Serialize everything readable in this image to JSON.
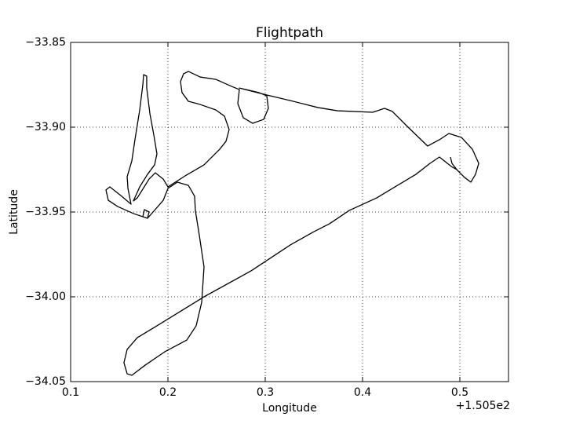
{
  "chart_data": {
    "type": "line",
    "title": "Flightpath",
    "x_label": "Longitude",
    "y_label": "Latitude",
    "x_offset_label": "+1.505e2",
    "color": "#000000",
    "grid": true,
    "xlim": [
      0.1,
      0.55
    ],
    "xticks": [
      0.1,
      0.2,
      0.3,
      0.4,
      0.5
    ],
    "ylim": [
      -34.05,
      -33.85
    ],
    "yticks": [
      {
        "value": -34.05,
        "label": "−34.05"
      },
      {
        "value": -34.0,
        "label": "−34.00"
      },
      {
        "value": -33.95,
        "label": "−33.95"
      },
      {
        "value": -33.9,
        "label": "−33.90"
      },
      {
        "value": -33.85,
        "label": "−33.85"
      }
    ],
    "x": [
      0.4903,
      0.4919,
      0.4968,
      0.4911,
      0.479,
      0.4694,
      0.4548,
      0.4145,
      0.3863,
      0.3661,
      0.35,
      0.3258,
      0.2855,
      0.2371,
      0.1887,
      0.1685,
      0.1581,
      0.1548,
      0.1581,
      0.1629,
      0.1766,
      0.1968,
      0.2194,
      0.229,
      0.2347,
      0.2371,
      0.2323,
      0.2282,
      0.2274,
      0.221,
      0.2097,
      0.2,
      0.1952,
      0.1847,
      0.179,
      0.1742,
      0.1758,
      0.1806,
      0.179,
      0.1645,
      0.1484,
      0.1387,
      0.1363,
      0.1403,
      0.1524,
      0.1621,
      0.1589,
      0.1581,
      0.1629,
      0.1661,
      0.171,
      0.1742,
      0.175,
      0.1782,
      0.1782,
      0.1815,
      0.1855,
      0.1887,
      0.1863,
      0.179,
      0.171,
      0.1645,
      0.1685,
      0.1806,
      0.1871,
      0.1952,
      0.2,
      0.2177,
      0.2371,
      0.2532,
      0.2597,
      0.2629,
      0.2581,
      0.2492,
      0.2331,
      0.221,
      0.2145,
      0.2129,
      0.2161,
      0.221,
      0.2331,
      0.2492,
      0.2653,
      0.2734,
      0.2718,
      0.2774,
      0.2871,
      0.2984,
      0.3032,
      0.3016,
      0.2935,
      0.2734,
      0.3016,
      0.3258,
      0.354,
      0.3742,
      0.4105,
      0.4226,
      0.4306,
      0.4468,
      0.4669,
      0.479,
      0.4887,
      0.5016,
      0.5129,
      0.5194,
      0.5161,
      0.5113,
      0.5048,
      0.4968
    ],
    "values": [
      -33.9176,
      -33.9213,
      -33.925,
      -33.9231,
      -33.9176,
      -33.9213,
      -33.9278,
      -33.9417,
      -33.9491,
      -33.9569,
      -33.9616,
      -33.9694,
      -33.9847,
      -34.0,
      -34.0171,
      -34.0241,
      -34.031,
      -34.0389,
      -34.0454,
      -34.0463,
      -34.0403,
      -34.0324,
      -34.0255,
      -34.0171,
      -34.0032,
      -33.9824,
      -33.9639,
      -33.9491,
      -33.9407,
      -33.9343,
      -33.9324,
      -33.9361,
      -33.9431,
      -33.95,
      -33.9537,
      -33.9528,
      -33.9486,
      -33.95,
      -33.9537,
      -33.9509,
      -33.9468,
      -33.9431,
      -33.937,
      -33.9352,
      -33.9407,
      -33.9454,
      -33.9361,
      -33.9292,
      -33.9199,
      -33.9074,
      -33.8898,
      -33.875,
      -33.869,
      -33.8699,
      -33.8769,
      -33.8921,
      -33.9046,
      -33.9157,
      -33.9222,
      -33.9278,
      -33.9352,
      -33.9435,
      -33.9417,
      -33.9306,
      -33.9269,
      -33.9306,
      -33.9352,
      -33.9287,
      -33.9222,
      -33.913,
      -33.9083,
      -33.9014,
      -33.8935,
      -33.8898,
      -33.8866,
      -33.8847,
      -33.8796,
      -33.8731,
      -33.8685,
      -33.8671,
      -33.8704,
      -33.8718,
      -33.8759,
      -33.8778,
      -33.8861,
      -33.8944,
      -33.8977,
      -33.8954,
      -33.8889,
      -33.8815,
      -33.8796,
      -33.8769,
      -33.881,
      -33.8843,
      -33.8884,
      -33.8903,
      -33.8912,
      -33.8889,
      -33.8907,
      -33.9,
      -33.9111,
      -33.9074,
      -33.9037,
      -33.906,
      -33.913,
      -33.9213,
      -33.9278,
      -33.9324,
      -33.9296,
      -33.925
    ]
  }
}
